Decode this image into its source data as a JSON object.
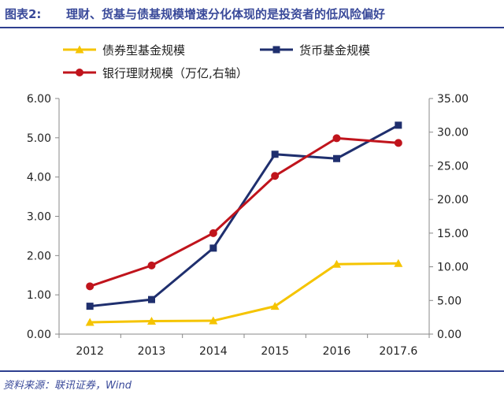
{
  "header": {
    "figure_label": "图表2:",
    "title": "理财、货基与债基规模增速分化体现的是投资者的低风险偏好"
  },
  "source": "资料来源：联讯证券，Wind",
  "colors": {
    "header_text": "#3a4a9a",
    "rule": "#2e3f8f",
    "axis": "#888888"
  },
  "chart_data": {
    "type": "line",
    "categories": [
      "2012",
      "2013",
      "2014",
      "2015",
      "2016",
      "2017.6"
    ],
    "y_left": {
      "ylim": [
        0,
        6
      ],
      "ticks": [
        "0.00",
        "1.00",
        "2.00",
        "3.00",
        "4.00",
        "5.00",
        "6.00"
      ]
    },
    "y_right": {
      "ylim": [
        0,
        35
      ],
      "ticks": [
        "0.00",
        "5.00",
        "10.00",
        "15.00",
        "20.00",
        "25.00",
        "30.00",
        "35.00"
      ]
    },
    "grid": false,
    "legend_position": "top",
    "series": [
      {
        "name": "债券型基金规模",
        "axis": "left",
        "color": "#f5c400",
        "marker": "triangle",
        "values": [
          0.3,
          0.33,
          0.34,
          0.71,
          1.78,
          1.8
        ]
      },
      {
        "name": "货币基金规模",
        "axis": "left",
        "color": "#1f2f6e",
        "marker": "square",
        "values": [
          0.71,
          0.88,
          2.19,
          4.58,
          4.47,
          5.32
        ]
      },
      {
        "name": "银行理财规模（万亿,右轴）",
        "axis": "right",
        "color": "#c0141c",
        "marker": "circle",
        "values": [
          7.1,
          10.2,
          15.0,
          23.5,
          29.1,
          28.4
        ]
      }
    ]
  }
}
